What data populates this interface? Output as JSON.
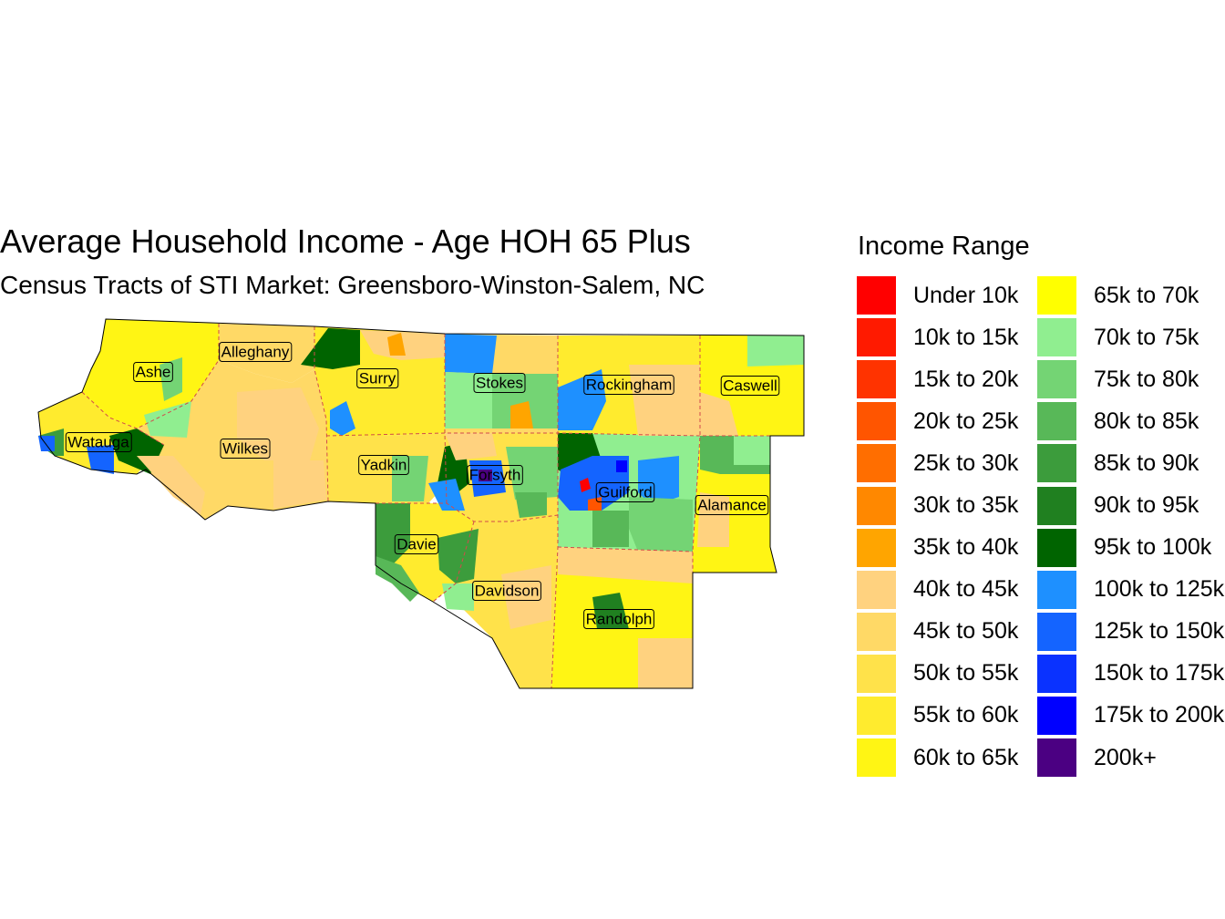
{
  "title": "Average Household Income - Age HOH 65 Plus",
  "subtitle": "Census Tracts of STI Market: Greensboro-Winston-Salem, NC",
  "legend": {
    "title": "Income Range",
    "items": [
      {
        "label": "Under 10k",
        "color": "#FF0000"
      },
      {
        "label": "10k to 15k",
        "color": "#FF1A00"
      },
      {
        "label": "15k to 20k",
        "color": "#FF3300"
      },
      {
        "label": "20k to 25k",
        "color": "#FF5500"
      },
      {
        "label": "25k to 30k",
        "color": "#FF6E00"
      },
      {
        "label": "30k to 35k",
        "color": "#FF8800"
      },
      {
        "label": "35k to 40k",
        "color": "#FFA500"
      },
      {
        "label": "40k to 45k",
        "color": "#FFD27F"
      },
      {
        "label": "45k to 50k",
        "color": "#FFD966"
      },
      {
        "label": "50k to 55k",
        "color": "#FFE24A"
      },
      {
        "label": "55k to 60k",
        "color": "#FFEB2E"
      },
      {
        "label": "60k to 65k",
        "color": "#FFF514"
      },
      {
        "label": "65k to 70k",
        "color": "#FFFF00"
      },
      {
        "label": "70k to 75k",
        "color": "#90EE90"
      },
      {
        "label": "75k to 80k",
        "color": "#74D474"
      },
      {
        "label": "80k to 85k",
        "color": "#58B858"
      },
      {
        "label": "85k to 90k",
        "color": "#3C9C3C"
      },
      {
        "label": "90k to 95k",
        "color": "#208020"
      },
      {
        "label": "95k to 100k",
        "color": "#006400"
      },
      {
        "label": "100k to 125k",
        "color": "#1E90FF"
      },
      {
        "label": "125k to 150k",
        "color": "#1464FF"
      },
      {
        "label": "150k to 175k",
        "color": "#0A32FF"
      },
      {
        "label": "175k to 200k",
        "color": "#0000FF"
      },
      {
        "label": "200k+",
        "color": "#4B0082"
      }
    ]
  },
  "counties": [
    {
      "name": "Ashe"
    },
    {
      "name": "Alleghany"
    },
    {
      "name": "Surry"
    },
    {
      "name": "Stokes"
    },
    {
      "name": "Rockingham"
    },
    {
      "name": "Caswell"
    },
    {
      "name": "Watauga"
    },
    {
      "name": "Wilkes"
    },
    {
      "name": "Yadkin"
    },
    {
      "name": "Forsyth"
    },
    {
      "name": "Guilford"
    },
    {
      "name": "Alamance"
    },
    {
      "name": "Davie"
    },
    {
      "name": "Davidson"
    },
    {
      "name": "Randolph"
    }
  ]
}
